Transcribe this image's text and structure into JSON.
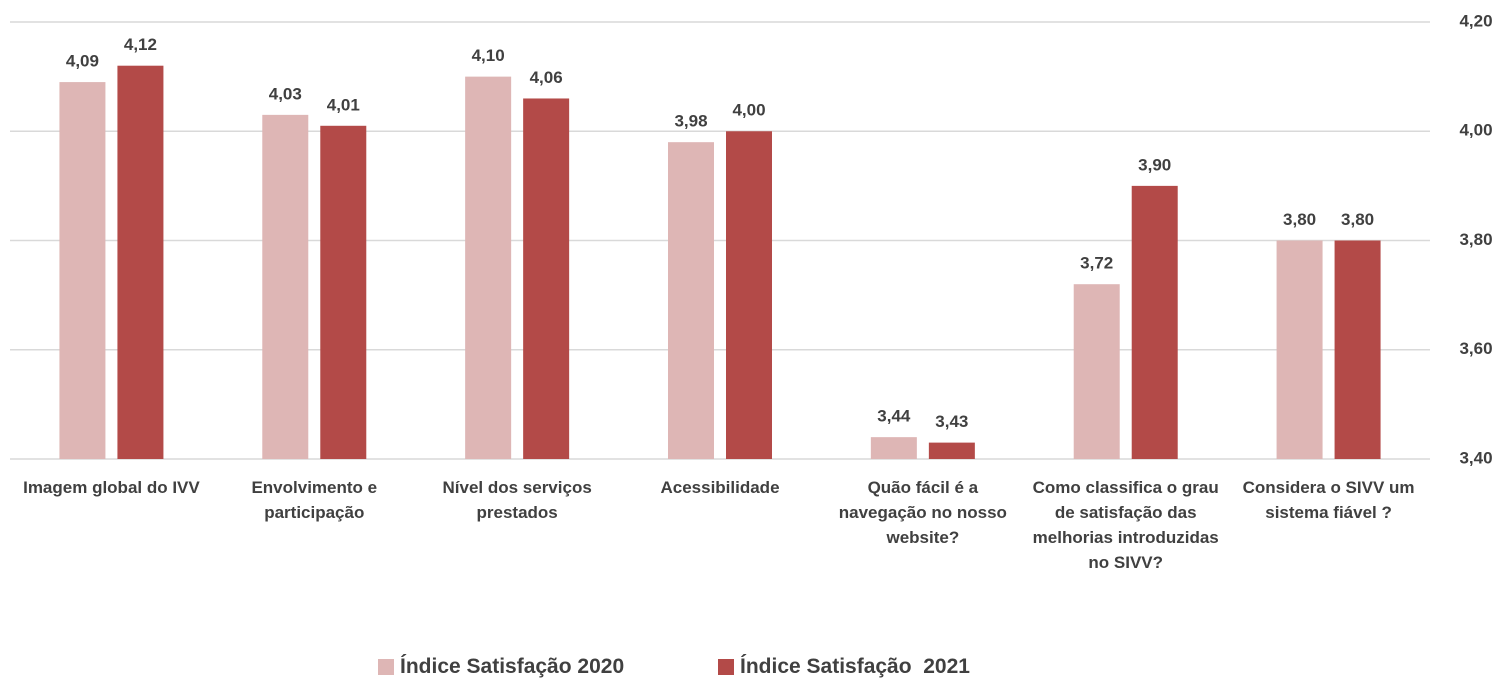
{
  "chart_data": {
    "type": "bar",
    "categories": [
      "Imagem global do IVV",
      "Envolvimento e participação",
      "Nível dos serviços prestados",
      "Acessibilidade",
      "Quão fácil é a navegação no nosso website?",
      "Como classifica o grau de satisfação das melhorias introduzidas no SIVV?",
      "Considera o SIVV um sistema fiável ?"
    ],
    "series": [
      {
        "name": "Índice Satisfação 2020",
        "color": "#deb6b5",
        "values": [
          4.09,
          4.03,
          4.1,
          3.98,
          3.44,
          3.72,
          3.8
        ],
        "value_labels": [
          "4,09",
          "4,03",
          "4,10",
          "3,98",
          "3,44",
          "3,72",
          "3,80"
        ]
      },
      {
        "name": "Índice Satisfação  2021",
        "color": "#b34a48",
        "values": [
          4.12,
          4.01,
          4.06,
          4.0,
          3.43,
          3.9,
          3.8
        ],
        "value_labels": [
          "4,12",
          "4,01",
          "4,06",
          "4,00",
          "3,43",
          "3,90",
          "3,80"
        ]
      }
    ],
    "ylim": [
      3.4,
      4.2
    ],
    "yticks": [
      {
        "value": 3.4,
        "label": "3,40"
      },
      {
        "value": 3.6,
        "label": "3,60"
      },
      {
        "value": 3.8,
        "label": "3,80"
      },
      {
        "value": 4.0,
        "label": "4,00"
      },
      {
        "value": 4.2,
        "label": "4,20"
      }
    ],
    "grid": true,
    "legend": "bottom"
  }
}
